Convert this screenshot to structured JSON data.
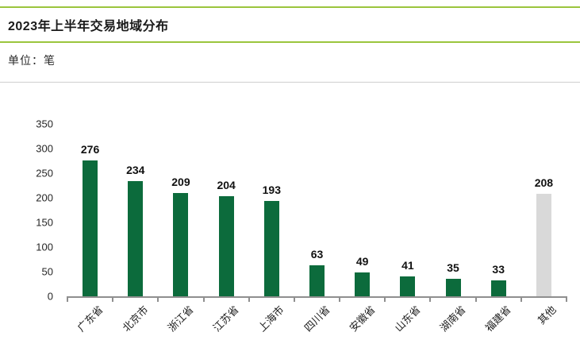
{
  "header": {
    "title": "2023年上半年交易地域分布",
    "unit_label": "单位：笔"
  },
  "chart_data": {
    "type": "bar",
    "title": "2023年上半年交易地域分布",
    "unit": "笔",
    "categories": [
      "广东省",
      "北京市",
      "浙江省",
      "江苏省",
      "上海市",
      "四川省",
      "安徽省",
      "山东省",
      "湖南省",
      "福建省",
      "其他"
    ],
    "values": [
      276,
      234,
      209,
      204,
      193,
      63,
      49,
      41,
      35,
      33,
      208
    ],
    "bar_colors": [
      "#0c6b3c",
      "#0c6b3c",
      "#0c6b3c",
      "#0c6b3c",
      "#0c6b3c",
      "#0c6b3c",
      "#0c6b3c",
      "#0c6b3c",
      "#0c6b3c",
      "#0c6b3c",
      "#d9d9d9"
    ],
    "data_labels": true,
    "ylim": [
      0,
      350
    ],
    "yticks": [
      0,
      50,
      100,
      150,
      200,
      250,
      300,
      350
    ],
    "grid": false,
    "legend": false,
    "xlabel": "",
    "ylabel": ""
  },
  "colors": {
    "accent_line": "#9bc53d",
    "bar_green": "#0c6b3c",
    "bar_gray": "#d9d9d9",
    "axis": "#8f8f8f",
    "divider_gray": "#cfcfcf",
    "text": "#1a1a1a"
  }
}
